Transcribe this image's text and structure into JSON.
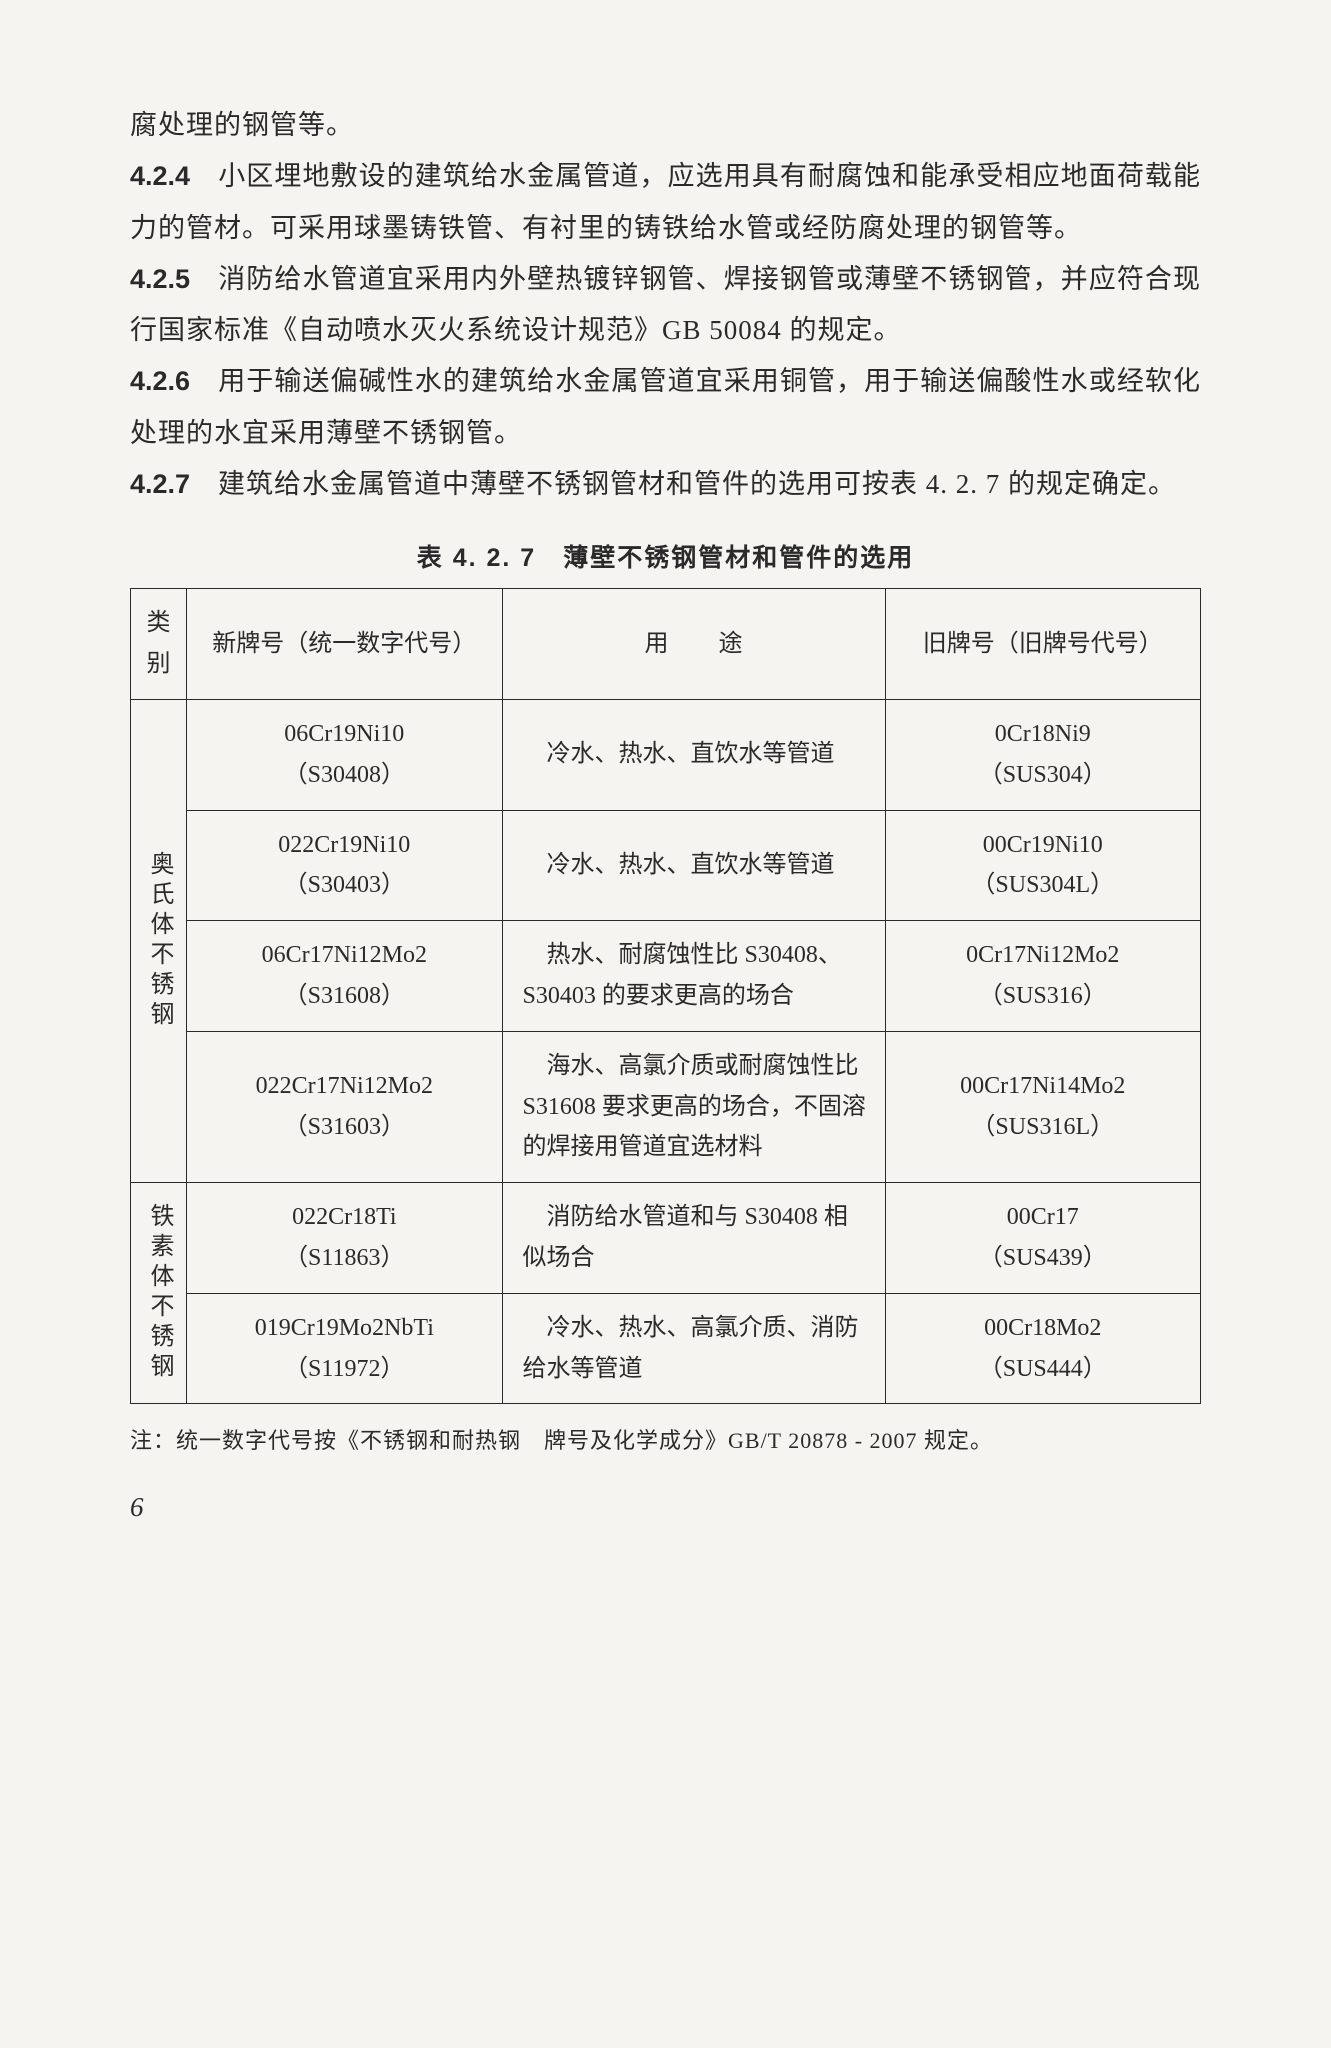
{
  "paragraphs": {
    "p0": "腐处理的钢管等。",
    "p1num": "4.2.4",
    "p1": "　小区埋地敷设的建筑给水金属管道，应选用具有耐腐蚀和能承受相应地面荷载能力的管材。可采用球墨铸铁管、有衬里的铸铁给水管或经防腐处理的钢管等。",
    "p2num": "4.2.5",
    "p2": "　消防给水管道宜采用内外壁热镀锌钢管、焊接钢管或薄壁不锈钢管，并应符合现行国家标准《自动喷水灭火系统设计规范》GB 50084 的规定。",
    "p3num": "4.2.6",
    "p3": "　用于输送偏碱性水的建筑给水金属管道宜采用铜管，用于输送偏酸性水或经软化处理的水宜采用薄壁不锈钢管。",
    "p4num": "4.2.7",
    "p4": "　建筑给水金属管道中薄壁不锈钢管材和管件的选用可按表 4. 2. 7 的规定确定。"
  },
  "table": {
    "title": "表 4. 2. 7　薄壁不锈钢管材和管件的选用",
    "headers": {
      "type": "类别",
      "newGrade": "新牌号（统一数字代号）",
      "use": "用途",
      "oldGrade": "旧牌号（旧牌号代号）"
    },
    "groups": [
      {
        "label": "奥氏体不锈钢",
        "rows": [
          {
            "new1": "06Cr19Ni10",
            "new2": "（S30408）",
            "use": "　冷水、热水、直饮水等管道",
            "old1": "0Cr18Ni9",
            "old2": "（SUS304）"
          },
          {
            "new1": "022Cr19Ni10",
            "new2": "（S30403）",
            "use": "　冷水、热水、直饮水等管道",
            "old1": "00Cr19Ni10",
            "old2": "（SUS304L）"
          },
          {
            "new1": "06Cr17Ni12Mo2",
            "new2": "（S31608）",
            "use": "　热水、耐腐蚀性比 S30408、S30403 的要求更高的场合",
            "old1": "0Cr17Ni12Mo2",
            "old2": "（SUS316）"
          },
          {
            "new1": "022Cr17Ni12Mo2",
            "new2": "（S31603）",
            "use": "　海水、高氯介质或耐腐蚀性比 S31608 要求更高的场合，不固溶的焊接用管道宜选材料",
            "old1": "00Cr17Ni14Mo2",
            "old2": "（SUS316L）"
          }
        ]
      },
      {
        "label": "铁素体不锈钢",
        "rows": [
          {
            "new1": "022Cr18Ti",
            "new2": "（S11863）",
            "use": "　消防给水管道和与 S30408 相似场合",
            "old1": "00Cr17",
            "old2": "（SUS439）"
          },
          {
            "new1": "019Cr19Mo2NbTi",
            "new2": "（S11972）",
            "use": "　冷水、热水、高氯介质、消防给水等管道",
            "old1": "00Cr18Mo2",
            "old2": "（SUS444）"
          }
        ]
      }
    ],
    "note": "注：统一数字代号按《不锈钢和耐热钢　牌号及化学成分》GB/T 20878 - 2007 规定。"
  },
  "pageNumber": "6"
}
